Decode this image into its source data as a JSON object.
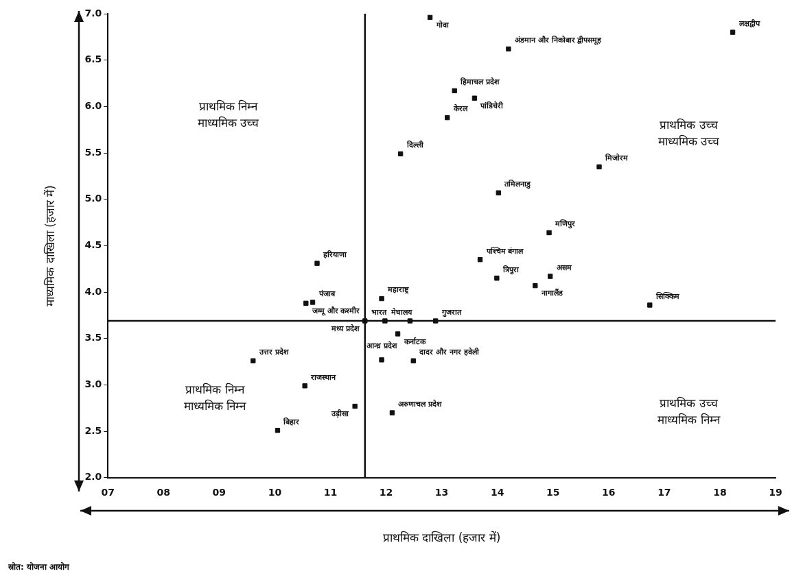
{
  "chart_data": {
    "type": "scatter",
    "xlabel": "प्राथमिक दाखिला (हजार में)",
    "ylabel": "माध्यमिक दाखिला (हजार में)",
    "x": [
      12.79,
      14.2,
      18.23,
      13.23,
      13.59,
      13.1,
      12.26,
      15.83,
      14.02,
      14.93,
      13.69,
      13.99,
      14.95,
      14.68,
      16.74,
      10.76,
      10.68,
      10.56,
      11.62,
      11.92,
      11.98,
      12.43,
      12.89,
      12.21,
      11.92,
      12.49,
      9.61,
      10.54,
      11.44,
      12.11,
      10.05
    ],
    "values": [
      6.96,
      6.62,
      6.8,
      6.17,
      6.09,
      5.88,
      5.49,
      5.35,
      5.07,
      4.64,
      4.35,
      4.15,
      4.17,
      4.07,
      3.86,
      4.31,
      3.89,
      3.88,
      3.69,
      3.93,
      3.69,
      3.69,
      3.69,
      3.55,
      3.27,
      3.26,
      3.26,
      2.99,
      2.77,
      2.7,
      2.51
    ],
    "color": "#111111",
    "marker": "square",
    "xlim": [
      7,
      19
    ],
    "xticks": [
      {
        "value": 7,
        "label": "07"
      },
      {
        "value": 8,
        "label": "08"
      },
      {
        "value": 9,
        "label": "09"
      },
      10,
      11,
      12,
      13,
      14,
      15,
      16,
      17,
      18,
      19
    ],
    "ylim": [
      2.0,
      7.0
    ],
    "yticks": [
      {
        "value": 2,
        "label": "2.0"
      },
      2.5,
      {
        "value": 3,
        "label": "3.0"
      },
      3.5,
      {
        "value": 4,
        "label": "4.0"
      },
      4.5,
      {
        "value": 5,
        "label": "5.0"
      },
      5.5,
      {
        "value": 6,
        "label": "6.0"
      },
      6.5,
      {
        "value": 7,
        "label": "7.0"
      }
    ],
    "tick_labels": [
      "x",
      "y"
    ],
    "ref_lines": [
      {
        "axis": "x",
        "value": 11.62,
        "color": "#111111"
      },
      {
        "axis": "y",
        "value": 3.69,
        "color": "#111111"
      }
    ],
    "annotations": [
      "प्राथमिक निम्न\nमाध्यमिक उच्च",
      "प्राथमिक उच्च\nमाध्यमिक उच्च",
      "प्राथमिक निम्न\nमाध्यमिक निम्न",
      "प्राथमिक उच्च\nमाध्यमिक निम्न",
      "स्रोत: योजना आयोग",
      {
        "text": "गोवा",
        "x": 12.79,
        "y": 6.96
      },
      {
        "text": "अंडमान और निकोबार द्वीपसमूह",
        "x": 14.2,
        "y": 6.62
      },
      {
        "text": "लक्षद्वीप",
        "x": 18.23,
        "y": 6.8
      },
      {
        "text": "हिमाचल प्रदेश",
        "x": 13.23,
        "y": 6.17
      },
      {
        "text": "पांडिचेरी",
        "x": 13.59,
        "y": 6.09
      },
      {
        "text": "केरल",
        "x": 13.1,
        "y": 5.88
      },
      {
        "text": "दिल्ली",
        "x": 12.26,
        "y": 5.49
      },
      {
        "text": "मिजोरम",
        "x": 15.83,
        "y": 5.35
      },
      {
        "text": "तमिलनाडु",
        "x": 14.02,
        "y": 5.07
      },
      {
        "text": "मणिपुर",
        "x": 14.93,
        "y": 4.64
      },
      {
        "text": "पश्चिम बंगाल",
        "x": 13.69,
        "y": 4.35
      },
      {
        "text": "त्रिपुरा",
        "x": 13.99,
        "y": 4.15
      },
      {
        "text": "असम",
        "x": 14.95,
        "y": 4.17
      },
      {
        "text": "नागालैंड",
        "x": 14.68,
        "y": 4.07
      },
      {
        "text": "सिक्किम",
        "x": 16.74,
        "y": 3.86
      },
      {
        "text": "हरियाणा",
        "x": 10.76,
        "y": 4.31
      },
      {
        "text": "पंजाब",
        "x": 10.68,
        "y": 3.89
      },
      {
        "text": "जम्मू और कश्मीर",
        "x": 10.56,
        "y": 3.88
      },
      {
        "text": "भारत",
        "x": 11.62,
        "y": 3.69
      },
      {
        "text": "मध्य प्रदेश",
        "x": 11.62,
        "y": 3.69
      },
      {
        "text": "महाराष्ट्र",
        "x": 11.92,
        "y": 3.93
      },
      {
        "text": "मेघालय",
        "x": 11.98,
        "y": 3.69
      },
      {
        "text": "गुजरात",
        "x": 12.89,
        "y": 3.69
      },
      {
        "text": "कर्नाटक",
        "x": 12.21,
        "y": 3.55
      },
      {
        "text": "आन्ध्र प्रदेश",
        "x": 11.92,
        "y": 3.27
      },
      {
        "text": "दादर और नगर हवेली",
        "x": 12.49,
        "y": 3.26
      },
      {
        "text": "उत्तर प्रदेश",
        "x": 9.61,
        "y": 3.26
      },
      {
        "text": "राजस्थान",
        "x": 10.54,
        "y": 2.99
      },
      {
        "text": "उड़ीसा",
        "x": 11.44,
        "y": 2.77
      },
      {
        "text": "अरुणाचल प्रदेश",
        "x": 12.11,
        "y": 2.7
      },
      {
        "text": "बिहार",
        "x": 10.05,
        "y": 2.51
      }
    ]
  }
}
